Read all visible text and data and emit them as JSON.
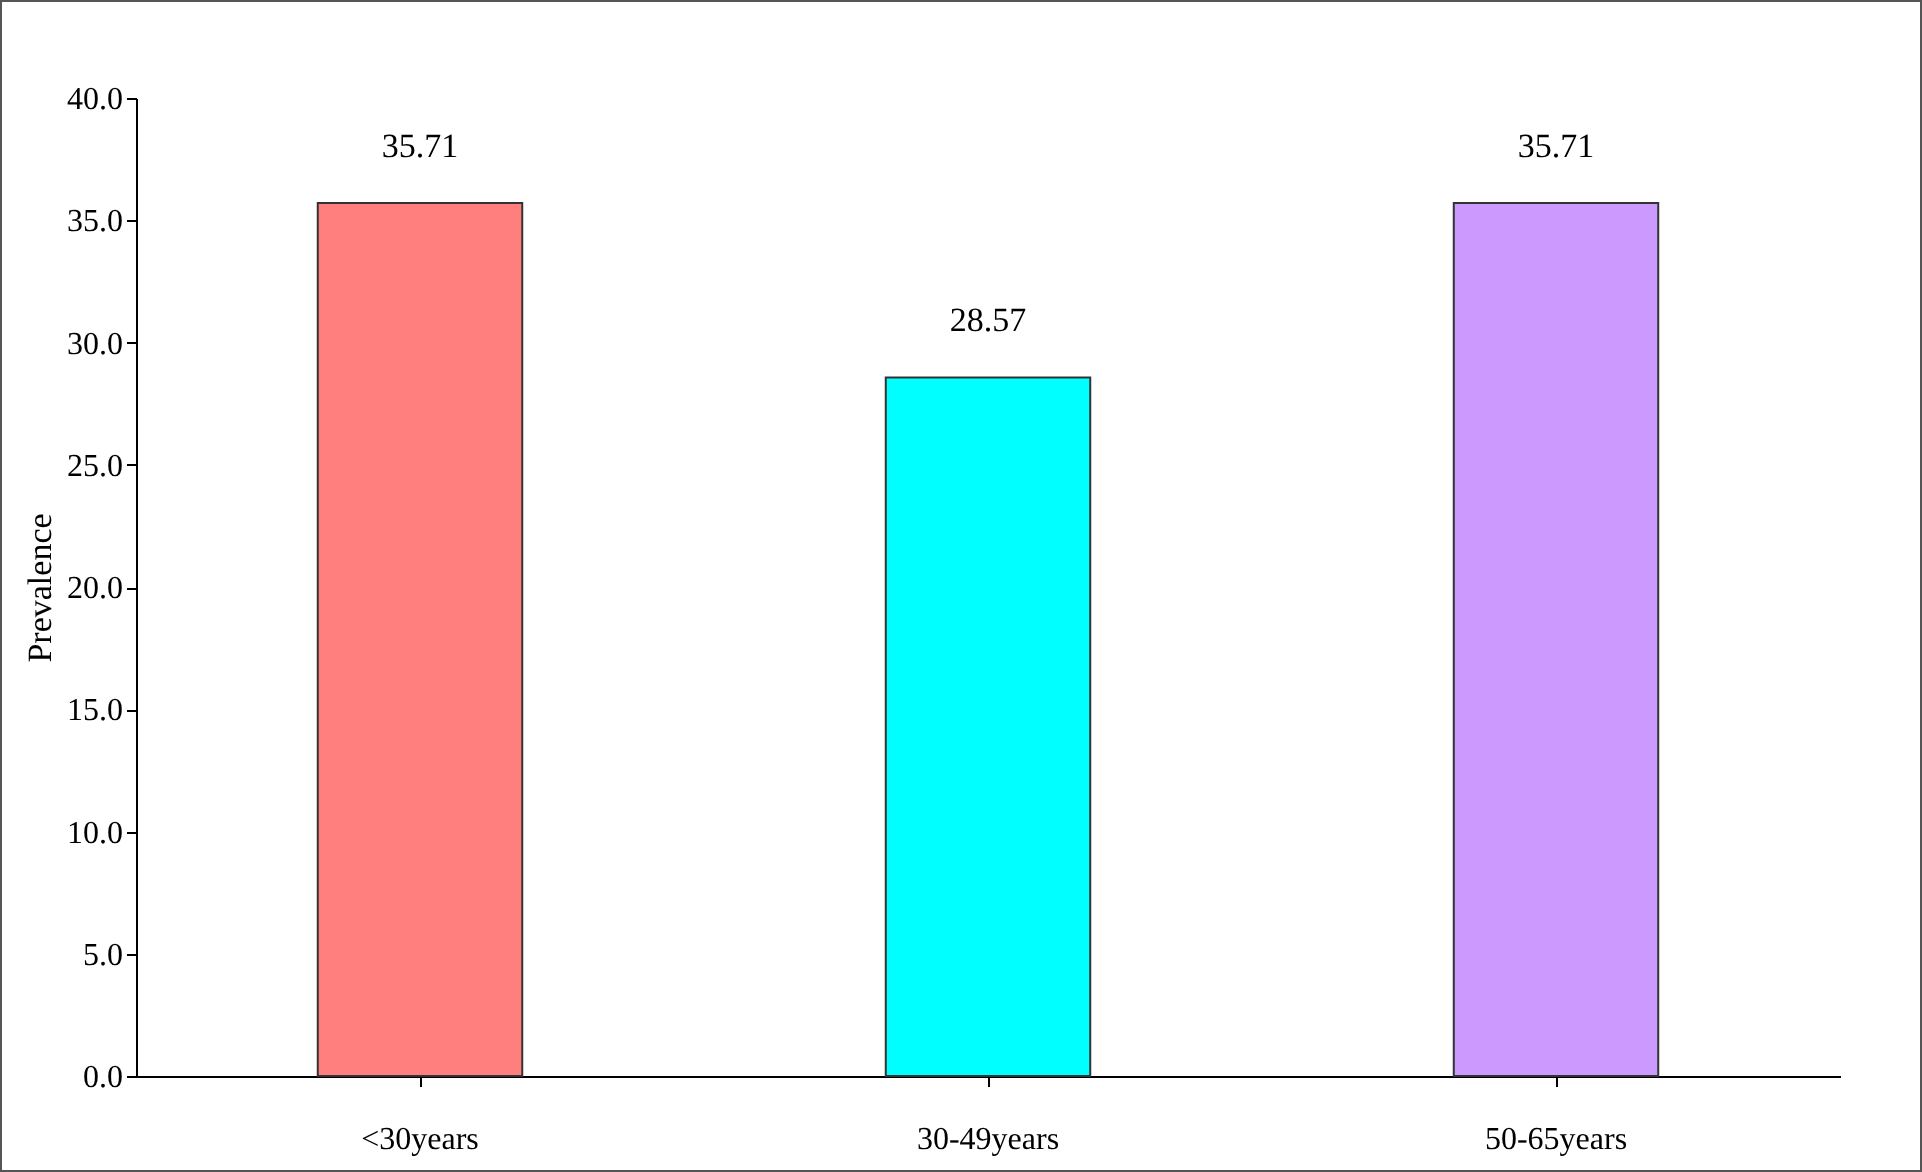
{
  "chart_data": {
    "type": "bar",
    "ylabel": "Prevalence",
    "categories": [
      "<30years",
      "30-49years",
      "50-65years"
    ],
    "values": [
      35.71,
      28.57,
      35.71
    ],
    "colors": [
      "#ff7f7f",
      "#00ffff",
      "#cc99ff"
    ],
    "ylim": [
      0,
      40
    ],
    "yticks": [
      {
        "value": 0,
        "label": "0.0"
      },
      {
        "value": 5,
        "label": "5.0"
      },
      {
        "value": 10,
        "label": "10.0"
      },
      {
        "value": 15,
        "label": "15.0"
      },
      {
        "value": 20,
        "label": "20.0"
      },
      {
        "value": 25,
        "label": "25.0"
      },
      {
        "value": 30,
        "label": "30.0"
      },
      {
        "value": 35,
        "label": "35.0"
      },
      {
        "value": 40,
        "label": "40.0"
      }
    ],
    "data_labels": true,
    "grid": false,
    "legend": false
  }
}
